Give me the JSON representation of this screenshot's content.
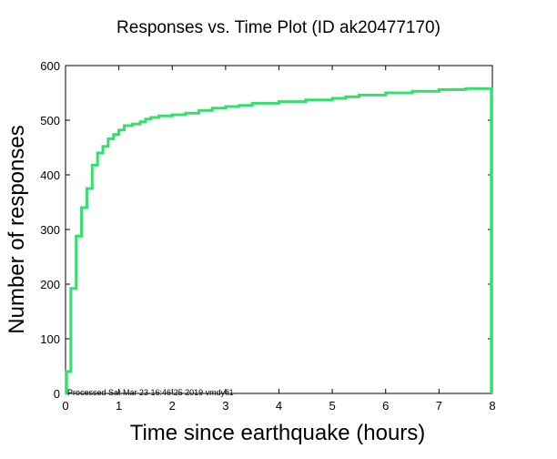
{
  "chart_data": {
    "type": "line",
    "title": "Responses vs. Time Plot (ID ak20477170)",
    "xlabel": "Time since earthquake (hours)",
    "ylabel": "Number of responses",
    "xlim": [
      0,
      8
    ],
    "ylim": [
      0,
      600
    ],
    "xticks": [
      0,
      1,
      2,
      3,
      4,
      5,
      6,
      7,
      8
    ],
    "yticks": [
      0,
      100,
      200,
      300,
      400,
      500,
      600
    ],
    "grid": false,
    "line_style": "step",
    "series": [
      {
        "color": "#33e06a",
        "x": [
          0,
          0.02,
          0.1,
          0.2,
          0.3,
          0.4,
          0.5,
          0.6,
          0.7,
          0.8,
          0.9,
          1.0,
          1.1,
          1.25,
          1.4,
          1.5,
          1.6,
          1.75,
          2.0,
          2.25,
          2.5,
          2.75,
          3.0,
          3.25,
          3.5,
          4.0,
          4.5,
          5.0,
          5.25,
          5.5,
          6.0,
          6.5,
          7.0,
          7.5,
          7.98,
          7.98
        ],
        "y": [
          0,
          40,
          192,
          288,
          340,
          375,
          418,
          440,
          452,
          466,
          474,
          482,
          490,
          493,
          497,
          502,
          505,
          508,
          510,
          513,
          518,
          522,
          525,
          527,
          531,
          534,
          537,
          540,
          543,
          546,
          550,
          553,
          556,
          558,
          560,
          0
        ]
      }
    ],
    "footnote": "Processed Sat Mar 23 16:46:25 2019 vmdyfi1"
  }
}
